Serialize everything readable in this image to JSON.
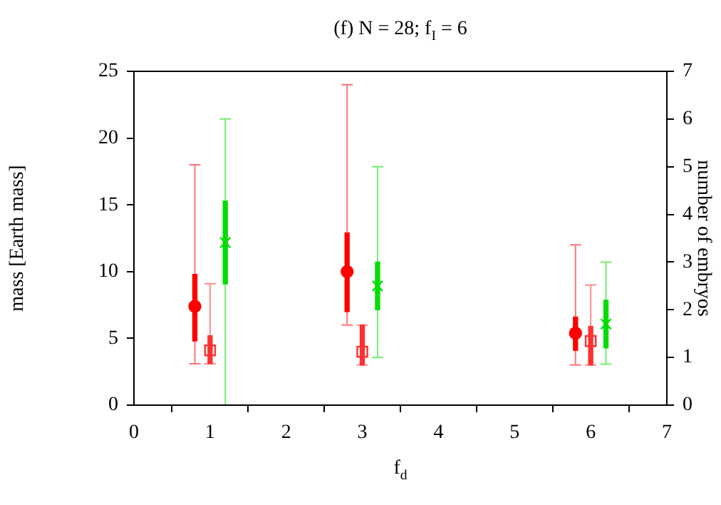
{
  "chart_data": {
    "type": "scatter",
    "title": "(f) N = 28; f$_{I}$ = 6",
    "xlabel": "f$_{d}$",
    "ylabel": "mass [Earth mass]",
    "y2label": "number of embryos",
    "xlim": [
      0,
      7
    ],
    "xticks": [
      0,
      1,
      2,
      3,
      4,
      5,
      6,
      7
    ],
    "ylim": [
      0,
      25
    ],
    "yticks": [
      0,
      5,
      10,
      15,
      20,
      25
    ],
    "y2lim": [
      0,
      7
    ],
    "y2ticks": [
      0,
      1,
      2,
      3,
      4,
      5,
      6,
      7
    ],
    "grid": false,
    "legend": false,
    "series": [
      {
        "type": "bar",
        "color": "#ff0000",
        "x": [
          0.8,
          2.8,
          5.8
        ],
        "base": [
          4.8,
          7,
          4.1
        ],
        "values": [
          5,
          5.9,
          2.5
        ]
      },
      {
        "type": "bar",
        "color": "#ff3030",
        "x": [
          1,
          3,
          6
        ],
        "base": [
          3.1,
          3,
          3
        ],
        "values": [
          2.1,
          3,
          2.9
        ]
      },
      {
        "type": "bar",
        "color": "#00dd00",
        "axis": "y2",
        "x": [
          1.2,
          3.2,
          6.2
        ],
        "base": [
          2.54,
          2,
          1.2
        ],
        "values": [
          1.74,
          1,
          1
        ]
      },
      {
        "color": "#ff0000",
        "marker": "circle",
        "x": [
          0.8,
          2.8,
          5.8
        ],
        "values": [
          7.4,
          10,
          5.4
        ],
        "errors": [
          [
            3.1,
            18
          ],
          [
            6,
            24
          ],
          [
            3,
            12
          ]
        ]
      },
      {
        "color": "#ff3030",
        "marker": "square",
        "x": [
          1,
          3,
          6
        ],
        "values": [
          4.1,
          4,
          4.8
        ],
        "errors": [
          [
            3.1,
            9.1
          ],
          [
            3,
            6
          ],
          [
            3,
            9
          ]
        ]
      },
      {
        "color": "#00dd00",
        "marker": "cross",
        "axis": "y2",
        "x": [
          1.2,
          3.2,
          6.2
        ],
        "values": [
          3.41,
          2.5,
          1.7
        ],
        "errors": [
          [
            0,
            6
          ],
          [
            1,
            5
          ],
          [
            0.86,
            3
          ]
        ]
      }
    ]
  }
}
